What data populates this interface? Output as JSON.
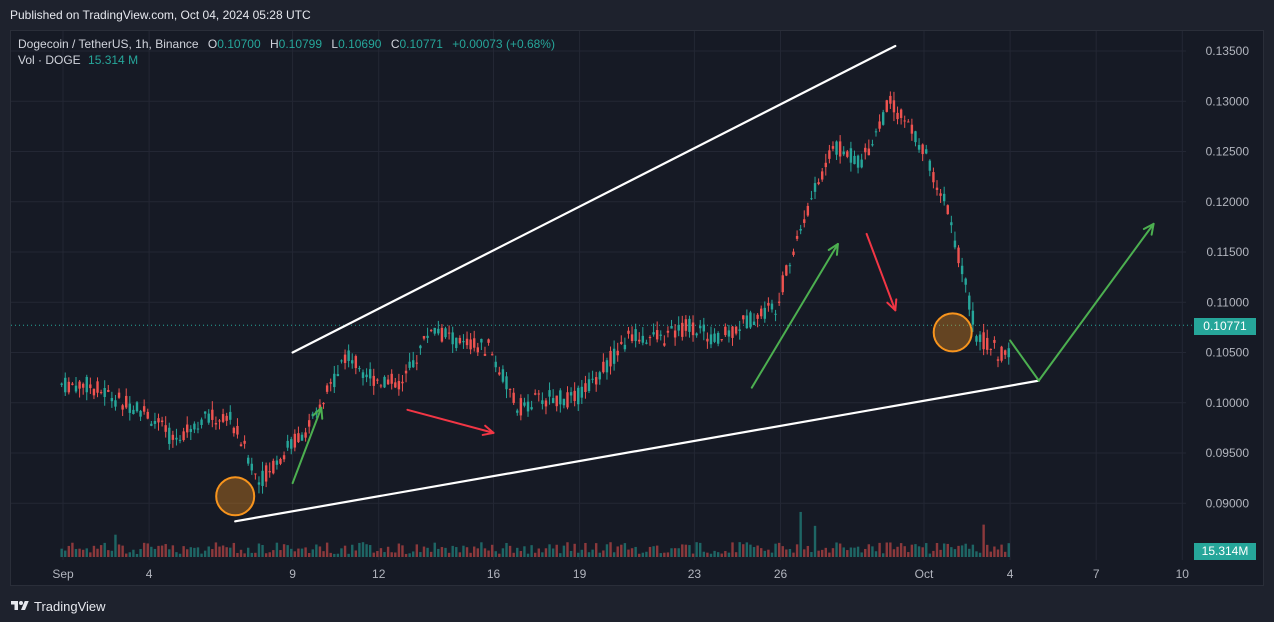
{
  "header": {
    "published": "Published on TradingView.com, Oct 04, 2024 05:28 UTC"
  },
  "legend": {
    "symbol": "Dogecoin / TetherUS, 1h, Binance",
    "open_label": "O",
    "open": "0.10700",
    "high_label": "H",
    "high": "0.10799",
    "low_label": "L",
    "low": "0.10690",
    "close_label": "C",
    "close": "0.10771",
    "change": "+0.00073 (+0.68%)",
    "vol_label": "Vol · DOGE",
    "vol_value": "15.314 M"
  },
  "price_tag": "0.10771",
  "volume_tag": "15.314M",
  "footer": {
    "brand": "TradingView",
    "logo_icon": "tradingview-logo-icon"
  },
  "colors": {
    "up": "#26a69a",
    "down": "#ef5350",
    "annotation_green": "#4caf50",
    "annotation_red": "#f23645",
    "circle": "#f7941d",
    "trendline": "#ffffff"
  },
  "chart_data": {
    "type": "candlestick",
    "symbol": "DOGEUSDT",
    "interval": "1h",
    "y_axis_ticks": [
      "0.13500",
      "0.13000",
      "0.12500",
      "0.12000",
      "0.11500",
      "0.11000",
      "0.10500",
      "0.10000",
      "0.09500",
      "0.09000"
    ],
    "x_axis_ticks": [
      "Sep",
      "4",
      "9",
      "12",
      "16",
      "19",
      "23",
      "26",
      "Oct",
      "4",
      "7",
      "10"
    ],
    "ylim": [
      0.0858,
      0.1368
    ],
    "series": [
      {
        "name": "close",
        "x": [
          "Sep 1",
          "Sep 2",
          "Sep 3",
          "Sep 4",
          "Sep 5",
          "Sep 6",
          "Sep 7",
          "Sep 8",
          "Sep 9",
          "Sep 10",
          "Sep 11",
          "Sep 12",
          "Sep 13",
          "Sep 14",
          "Sep 15",
          "Sep 16",
          "Sep 17",
          "Sep 18",
          "Sep 19",
          "Sep 20",
          "Sep 21",
          "Sep 22",
          "Sep 23",
          "Sep 24",
          "Sep 25",
          "Sep 26",
          "Sep 27",
          "Sep 28",
          "Sep 29",
          "Sep 30",
          "Oct 1",
          "Oct 2",
          "Oct 3",
          "Oct 4"
        ],
        "values": [
          0.1018,
          0.1005,
          0.0992,
          0.0963,
          0.0985,
          0.0985,
          0.0922,
          0.0955,
          0.0985,
          0.1048,
          0.1025,
          0.1018,
          0.1075,
          0.1058,
          0.1055,
          0.0995,
          0.1005,
          0.1003,
          0.1035,
          0.1068,
          0.1063,
          0.1078,
          0.1062,
          0.1082,
          0.1097,
          0.1185,
          0.1255,
          0.124,
          0.13,
          0.126,
          0.1195,
          0.1068,
          0.1045,
          0.1077
        ]
      }
    ],
    "annotations": {
      "upper_trendline": {
        "from": [
          "Sep 9",
          0.105
        ],
        "to": [
          "Sep 30",
          0.1355
        ]
      },
      "lower_trendline": {
        "from": [
          "Sep 7",
          0.0882
        ],
        "to": [
          "Oct 5",
          0.1022
        ]
      },
      "circles": [
        [
          "Sep 7",
          0.0907
        ],
        [
          "Oct 2",
          0.107
        ]
      ],
      "arrows_green": [
        [
          [
            "Sep 9",
            0.092
          ],
          [
            "Sep 10",
            0.0995
          ]
        ],
        [
          [
            "Sep 25",
            0.1015
          ],
          [
            "Sep 28",
            0.1158
          ]
        ],
        [
          [
            "Oct 4",
            0.1062
          ],
          [
            "Oct 5",
            0.1022
          ]
        ],
        [
          [
            "Oct 5",
            0.1022
          ],
          [
            "Oct 9",
            0.1178
          ]
        ]
      ],
      "arrows_red": [
        [
          [
            "Sep 13",
            0.0993
          ],
          [
            "Sep 16",
            0.097
          ]
        ],
        [
          [
            "Sep 29",
            0.1168
          ],
          [
            "Sep 30",
            0.1092
          ]
        ]
      ]
    }
  }
}
